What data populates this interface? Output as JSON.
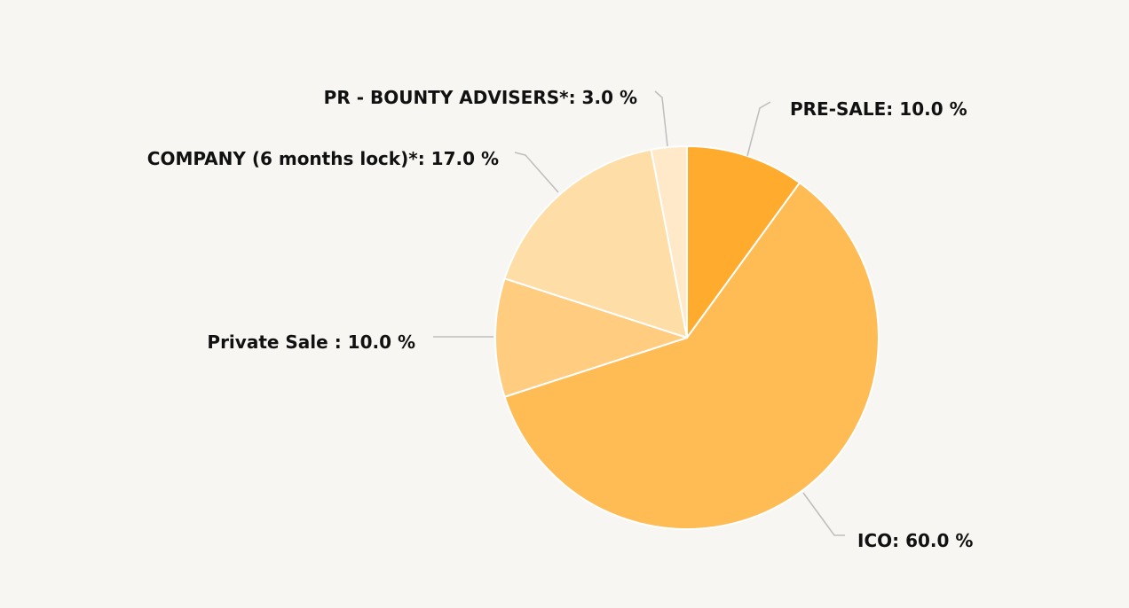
{
  "chart_data": {
    "type": "pie",
    "title": "",
    "start_angle_deg": 0,
    "direction": "clockwise",
    "slices": [
      {
        "label": "PRE-SALE",
        "value": 10.0,
        "display": "PRE-SALE: 10.0 %",
        "color": "#ffab2e"
      },
      {
        "label": "ICO",
        "value": 60.0,
        "display": "ICO: 60.0 %",
        "color": "#ffbc55"
      },
      {
        "label": "Private Sale ",
        "value": 10.0,
        "display": "Private Sale : 10.0 %",
        "color": "#ffcc80"
      },
      {
        "label": "COMPANY (6 months lock)*",
        "value": 17.0,
        "display": "COMPANY (6 months lock)*: 17.0 %",
        "color": "#ffdda6"
      },
      {
        "label": "PR - BOUNTY ADVISERS*",
        "value": 3.0,
        "display": "PR - BOUNTY ADVISERS*: 3.0 %",
        "color": "#ffe9c8"
      }
    ],
    "legend": "none",
    "label_placement": "outside-with-connectors"
  }
}
